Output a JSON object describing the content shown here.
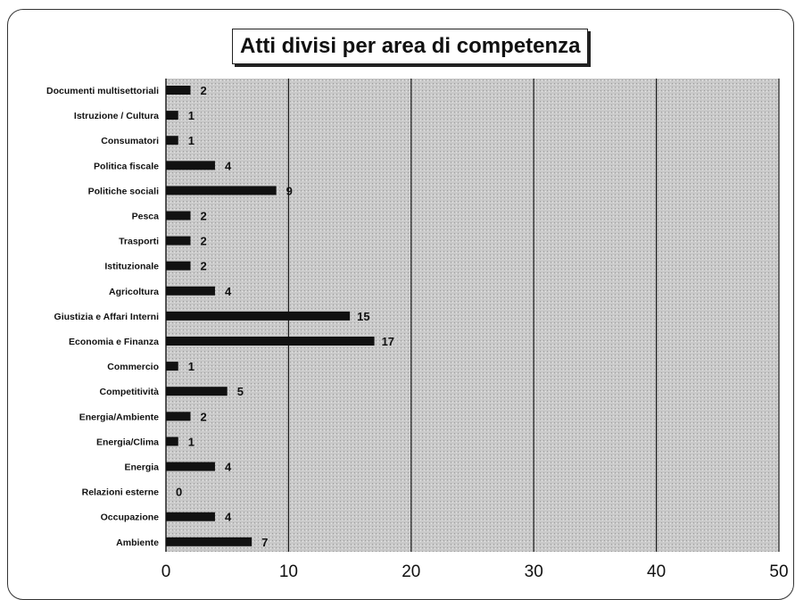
{
  "chart_data": {
    "type": "bar",
    "orientation": "horizontal",
    "title": "Atti divisi per area di competenza",
    "categories": [
      "Documenti multisettoriali",
      "Istruzione / Cultura",
      "Consumatori",
      "Politica fiscale",
      "Politiche sociali",
      "Pesca",
      "Trasporti",
      "Istituzionale",
      "Agricoltura",
      "Giustizia e Affari Interni",
      "Economia e Finanza",
      "Commercio",
      "Competitività",
      "Energia/Ambiente",
      "Energia/Clima",
      "Energia",
      "Relazioni esterne",
      "Occupazione",
      "Ambiente"
    ],
    "values": [
      2,
      1,
      1,
      4,
      9,
      2,
      2,
      2,
      4,
      15,
      17,
      1,
      5,
      2,
      1,
      4,
      0,
      4,
      7
    ],
    "xlim": [
      0,
      50
    ],
    "xticks": [
      0,
      10,
      20,
      30,
      40,
      50
    ],
    "grid": true,
    "data_labels": true,
    "colors": {
      "bar": "#111111",
      "plot_bg": "#c9c9c9",
      "grid": "#1a1a1a"
    }
  }
}
